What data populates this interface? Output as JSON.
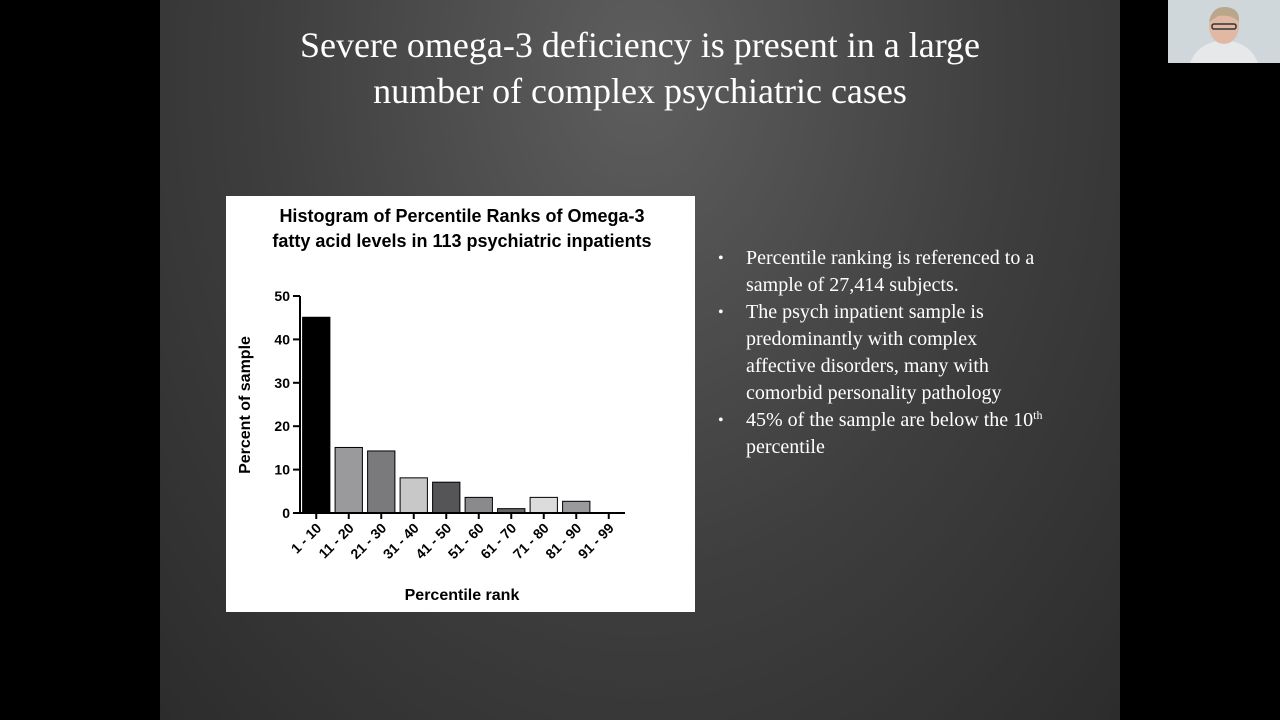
{
  "slide": {
    "title": [
      "Severe omega-3 deficiency is present in a large",
      "number of complex psychiatric cases"
    ],
    "bullets": [
      "Percentile ranking is referenced to a sample of 27,414 subjects.",
      "The psych inpatient sample is predominantly with complex affective disorders, many with comorbid personality pathology",
      {
        "text": "45% of the sample are below the 10",
        "superscript": "th",
        "tail": " percentile"
      }
    ]
  },
  "chart_data": {
    "type": "bar",
    "title": [
      "Histogram of Percentile Ranks of Omega-3",
      "fatty acid levels in 113 psychiatric inpatients"
    ],
    "x_label": "Percentile rank",
    "y_label": "Percent of sample",
    "categories": [
      "1 - 10",
      "11 - 20",
      "21 - 30",
      "31 - 40",
      "41 - 50",
      "51 - 60",
      "61 - 70",
      "71 - 80",
      "81 - 90",
      "91 - 99"
    ],
    "values": [
      45.1,
      15.1,
      14.3,
      8.1,
      7.1,
      3.6,
      1.0,
      3.6,
      2.7,
      0
    ],
    "colors": [
      "#000000",
      "#9a9a9c",
      "#7a7a7c",
      "#c8c8c8",
      "#555557",
      "#8a8a8c",
      "#666668",
      "#dcdcdc",
      "#9a9a9c",
      "#ffffff"
    ],
    "ylim": [
      0,
      50
    ],
    "yticks": [
      0,
      10,
      20,
      30,
      40,
      50
    ]
  }
}
